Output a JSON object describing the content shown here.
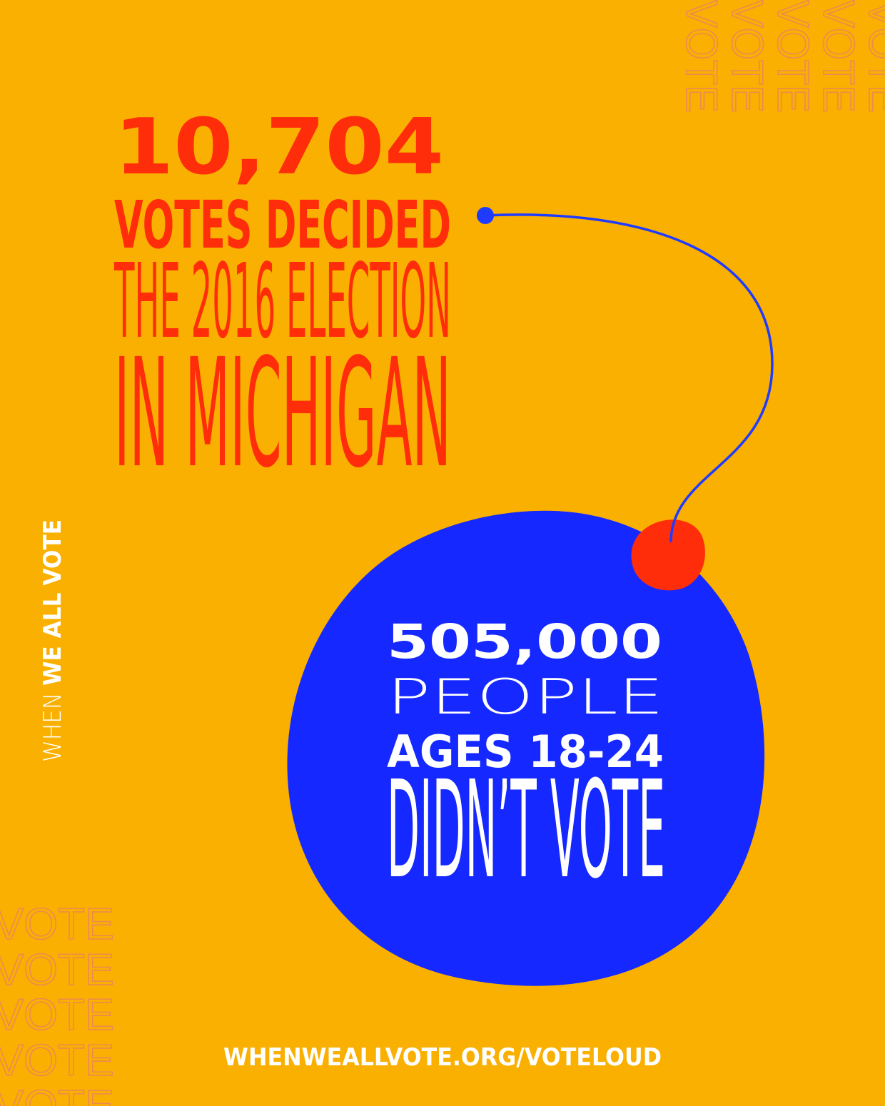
{
  "headline": {
    "number": "10,704",
    "line1": "VOTES DECIDED",
    "line2": "THE 2016 ELECTION",
    "line3": "IN MICHIGAN"
  },
  "bubble": {
    "number": "505,000",
    "line1": "PEOPLE",
    "line2": "AGES 18-24",
    "line3": "DIDN’T VOTE"
  },
  "logo": {
    "word1": "WHEN",
    "word2": "WE ALL",
    "word3": "VOTE"
  },
  "watermark": "VOTE",
  "footer": "WHENWEALLVOTE.ORG/VOTELOUD"
}
